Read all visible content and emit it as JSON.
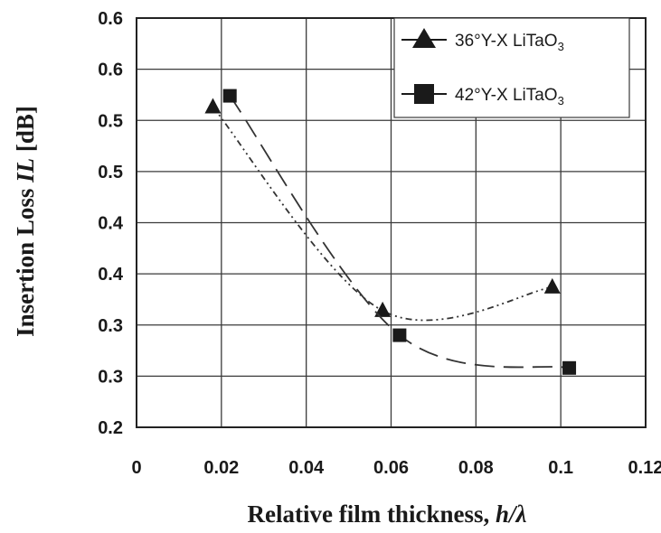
{
  "chart_data": {
    "type": "line",
    "xlabel": {
      "main": "Relative film thickness, ",
      "italic": "h/λ"
    },
    "ylabel": {
      "main": "Insertion Loss ",
      "italic": "IL",
      "unit": " [dB]"
    },
    "x_ticks": [
      "0",
      "0.02",
      "0.04",
      "0.06",
      "0.08",
      "0.1",
      "0.12"
    ],
    "y_ticks": [
      "0.6",
      "0.6",
      "0.5",
      "0.5",
      "0.4",
      "0.4",
      "0.3",
      "0.3",
      "0.2"
    ],
    "xlim": [
      0,
      0.12
    ],
    "y_tick_values": [
      0.6,
      0.55,
      0.5,
      0.45,
      0.4,
      0.35,
      0.3,
      0.25,
      0.2
    ],
    "grid": true,
    "legend_position": "top-right",
    "series": [
      {
        "name": "36°Y-X LiTaO",
        "name_sub": "3",
        "marker": "triangle",
        "line_style": "dash-dot-dot",
        "x": [
          0.018,
          0.058,
          0.098
        ],
        "y": [
          0.513,
          0.314,
          0.337
        ]
      },
      {
        "name": "42°Y-X LiTaO",
        "name_sub": "3",
        "marker": "square",
        "line_style": "long-dash",
        "x": [
          0.022,
          0.062,
          0.102
        ],
        "y": [
          0.524,
          0.29,
          0.258
        ]
      }
    ]
  }
}
